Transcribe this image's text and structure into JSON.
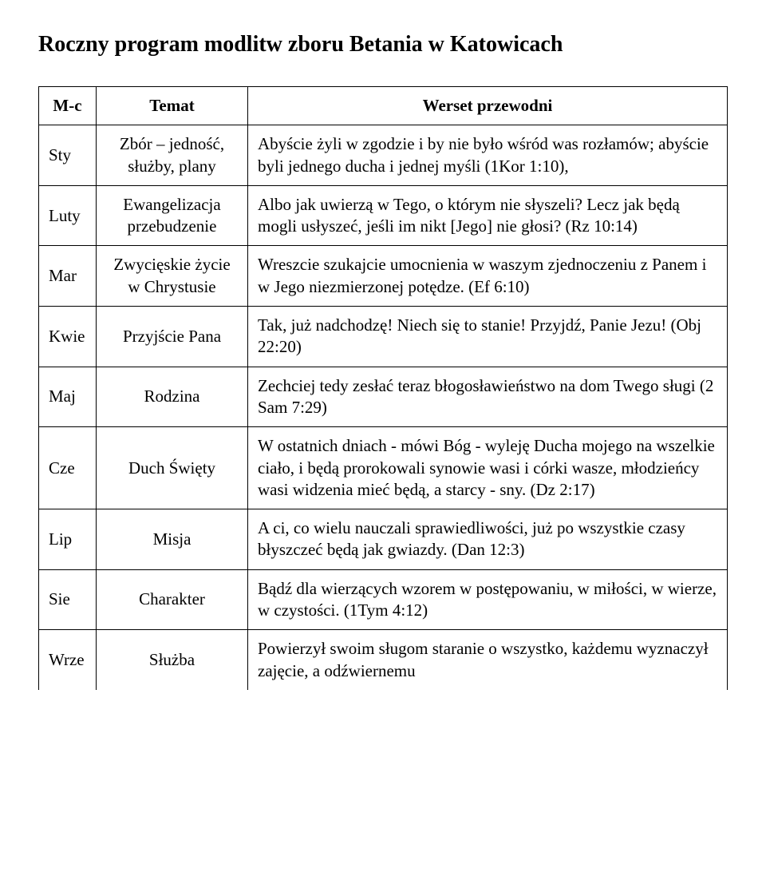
{
  "title": "Roczny program modlitw zboru Betania w Katowicach",
  "headers": {
    "month": "M-c",
    "topic": "Temat",
    "verse": "Werset przewodni"
  },
  "rows": [
    {
      "month": "Sty",
      "topic": "Zbór – jedność, służby, plany",
      "verse": "Abyście żyli w zgodzie i by nie było wśród was rozłamów; abyście byli jednego ducha i jednej myśli (1Kor 1:10),"
    },
    {
      "month": "Luty",
      "topic": "Ewangelizacja przebudzenie",
      "verse": "Albo jak uwierzą w Tego, o którym nie słyszeli? Lecz jak będą mogli usłyszeć, jeśli im nikt [Jego] nie głosi? (Rz 10:14)"
    },
    {
      "month": "Mar",
      "topic": "Zwycięskie życie w Chrystusie",
      "verse": "Wreszcie szukajcie umocnienia w waszym zjednoczeniu z Panem i w Jego niezmierzonej potędze. (Ef 6:10)"
    },
    {
      "month": "Kwie",
      "topic": "Przyjście Pana",
      "verse": "Tak, już nadchodzę! Niech się to stanie! Przyjdź, Panie Jezu! (Obj 22:20)"
    },
    {
      "month": "Maj",
      "topic": "Rodzina",
      "verse": "Zechciej tedy zesłać teraz błogosławieństwo na dom Twego sługi (2 Sam 7:29)"
    },
    {
      "month": "Cze",
      "topic": "Duch Święty",
      "verse": "W ostatnich dniach - mówi Bóg - wyleję Ducha mojego na wszelkie ciało, i będą prorokowali synowie wasi i córki wasze, młodzieńcy wasi widzenia mieć będą, a starcy - sny. (Dz 2:17)"
    },
    {
      "month": "Lip",
      "topic": "Misja",
      "verse": "A ci, co wielu nauczali sprawiedliwości, już po wszystkie czasy błyszczeć będą jak gwiazdy. (Dan 12:3)"
    },
    {
      "month": "Sie",
      "topic": "Charakter",
      "verse": "Bądź dla wierzących wzorem w postępowaniu, w miłości, w wierze, w czystości. (1Tym 4:12)"
    },
    {
      "month": "Wrze",
      "topic": "Służba",
      "verse": "Powierzył swoim sługom staranie o wszystko, każdemu wyznaczył zajęcie, a odźwiernemu"
    }
  ],
  "last_row_index": 8
}
